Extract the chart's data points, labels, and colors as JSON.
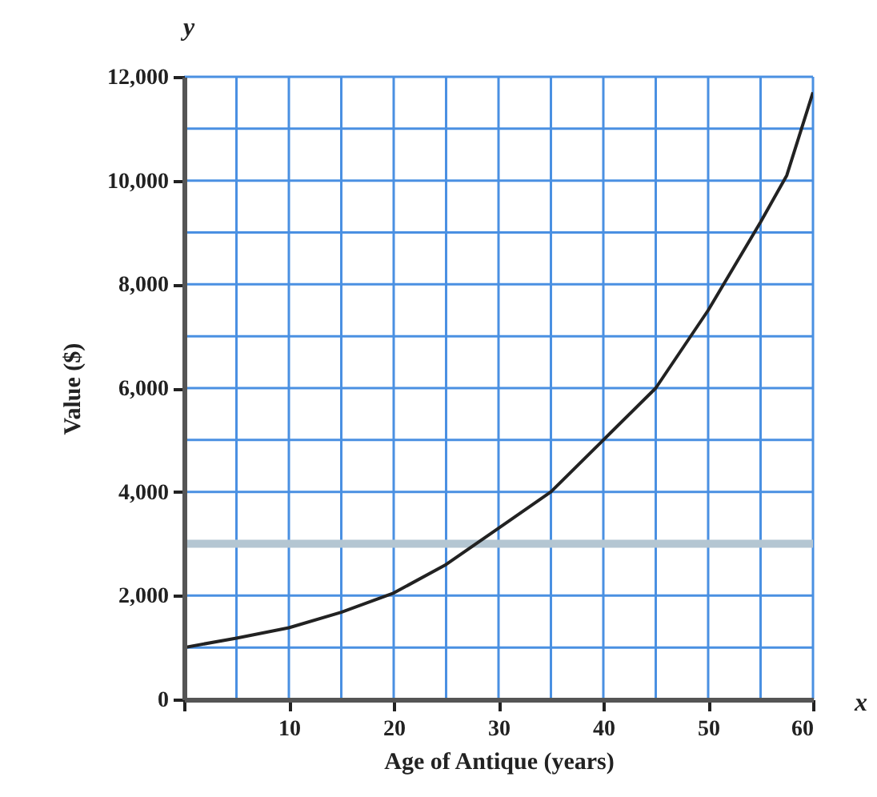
{
  "chart_data": {
    "type": "line",
    "xlabel": "Age of Antique (years)",
    "ylabel": "Value ($)",
    "annotations": [
      "y",
      "x"
    ],
    "x": [
      0,
      5,
      10,
      15,
      20,
      25,
      30,
      35,
      40,
      45,
      50,
      55,
      57.5,
      60
    ],
    "series": [
      {
        "color": "#222222",
        "values": [
          1000,
          1180,
          1380,
          1680,
          2050,
          2600,
          3300,
          4000,
          5000,
          6000,
          7500,
          9200,
          10100,
          11700
        ]
      }
    ],
    "xlim": [
      0,
      60
    ],
    "xticks": [
      {
        "value": 0,
        "label": null
      },
      {
        "value": 5,
        "label": null
      },
      10,
      {
        "value": 15,
        "label": null
      },
      20,
      {
        "value": 25,
        "label": null
      },
      30,
      {
        "value": 35,
        "label": null
      },
      40,
      {
        "value": 45,
        "label": null
      },
      50,
      {
        "value": 55,
        "label": null
      },
      60
    ],
    "ylim": [
      0,
      12000
    ],
    "yticks": [
      0,
      {
        "value": 1000,
        "label": null
      },
      {
        "value": 2000,
        "label": "2,000"
      },
      {
        "value": 3000,
        "label": null
      },
      {
        "value": 4000,
        "label": "4,000"
      },
      {
        "value": 5000,
        "label": null
      },
      {
        "value": 6000,
        "label": "6,000"
      },
      {
        "value": 7000,
        "label": null
      },
      {
        "value": 8000,
        "label": "8,000"
      },
      {
        "value": 9000,
        "label": null
      },
      {
        "value": 10000,
        "label": "10,000"
      },
      {
        "value": 11000,
        "label": null
      },
      {
        "value": 12000,
        "label": "12,000"
      }
    ],
    "grid": true,
    "ref_lines": [
      {
        "axis": "y",
        "value": 3000,
        "label": null,
        "color": "#b4c6d2"
      }
    ],
    "marker": "none",
    "line_style": "solid"
  }
}
